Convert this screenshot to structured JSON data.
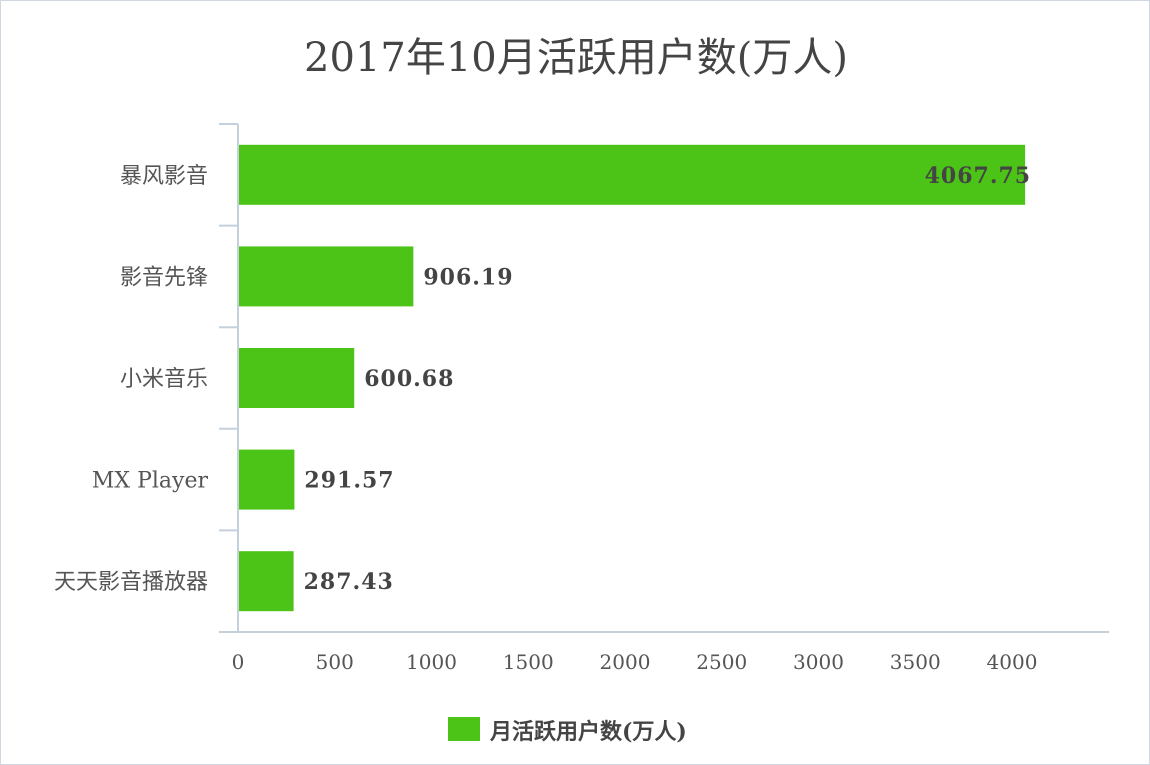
{
  "chart_data": {
    "type": "bar",
    "orientation": "horizontal",
    "title": "2017年10月活跃用户数(万人)",
    "categories": [
      "暴风影音",
      "影音先锋",
      "小米音乐",
      "MX Player",
      "天天影音播放器"
    ],
    "series": [
      {
        "name": "月活跃用户数(万人)",
        "values": [
          4067.75,
          906.19,
          600.68,
          291.57,
          287.43
        ],
        "value_labels": [
          "4067.75",
          "906.19",
          "600.68",
          "291.57",
          "287.43"
        ],
        "color": "#4cc417"
      }
    ],
    "xlim": [
      0,
      4500
    ],
    "xticks": [
      0,
      500,
      1000,
      1500,
      2000,
      2500,
      3000,
      3500,
      4000
    ],
    "grid": false,
    "legend_position": "bottom",
    "axis_color": "#c5d0dd"
  }
}
